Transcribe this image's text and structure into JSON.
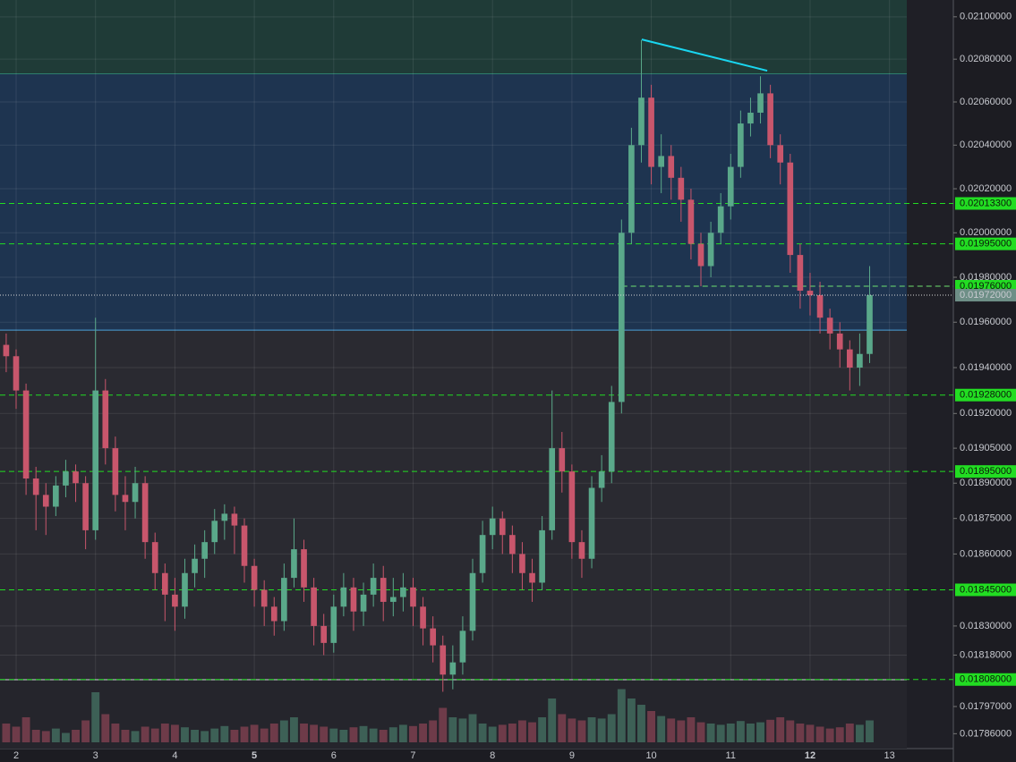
{
  "chart_data": {
    "type": "candlestick",
    "log_scale": true,
    "grid": true,
    "ylim": [
      0.0178,
      0.02108
    ],
    "xlim": [
      1.797,
      13.218
    ],
    "xticks": [
      2,
      3,
      4,
      5,
      6,
      7,
      8,
      9,
      10,
      11,
      12,
      13
    ],
    "xticks_bold": [
      5,
      12
    ],
    "yticks": [
      {
        "value": 0.021,
        "label": "0.02100000"
      },
      {
        "value": 0.0208,
        "label": "0.02080000"
      },
      {
        "value": 0.0206,
        "label": "0.02060000"
      },
      {
        "value": 0.0204,
        "label": "0.02040000"
      },
      {
        "value": 0.0202,
        "label": "0.02020000"
      },
      {
        "value": 0.02,
        "label": "0.02000000"
      },
      {
        "value": 0.0198,
        "label": "0.01980000"
      },
      {
        "value": 0.0196,
        "label": "0.01960000"
      },
      {
        "value": 0.0194,
        "label": "0.01940000"
      },
      {
        "value": 0.0192,
        "label": "0.01920000"
      },
      {
        "value": 0.01905,
        "label": "0.01905000"
      },
      {
        "value": 0.0189,
        "label": "0.01890000"
      },
      {
        "value": 0.01875,
        "label": "0.01875000"
      },
      {
        "value": 0.0186,
        "label": "0.01860000"
      },
      {
        "value": 0.0183,
        "label": "0.01830000"
      },
      {
        "value": 0.01818,
        "label": "0.01818000"
      },
      {
        "value": 0.01797,
        "label": "0.01797000"
      },
      {
        "value": 0.01786,
        "label": "0.01786000"
      }
    ],
    "up_color": "#5aa88a",
    "down_color": "#c8566c",
    "zones": [
      {
        "low": 0.02073,
        "color": "#1f3b37"
      },
      {
        "low": 0.019565,
        "high": 0.02073,
        "color": "#1e3450"
      }
    ],
    "trendline": {
      "x": [
        9.88,
        11.46
      ],
      "y": [
        0.020893,
        0.020746
      ],
      "color": "#19d6f0"
    },
    "levels": [
      {
        "value": 0.020133,
        "label": "0.02013300"
      },
      {
        "value": 0.01995,
        "label": "0.01995000"
      },
      {
        "value": 0.01976,
        "label": "0.01976000",
        "x_start": 9.63
      },
      {
        "value": 0.01928,
        "label": "0.01928000"
      },
      {
        "value": 0.01895,
        "label": "0.01895000"
      },
      {
        "value": 0.01845,
        "label": "0.01845000"
      },
      {
        "value": 0.01808,
        "label": "0.01808000"
      }
    ],
    "level_color": "#22dd22",
    "last_price": {
      "value": 0.01972,
      "label": "0.01972000",
      "color": "#6e8f87"
    },
    "volume_max": 100,
    "x": [
      1.875,
      2,
      2.125,
      2.25,
      2.375,
      2.5,
      2.625,
      2.75,
      2.875,
      3,
      3.125,
      3.25,
      3.375,
      3.5,
      3.625,
      3.75,
      3.875,
      4,
      4.125,
      4.25,
      4.375,
      4.5,
      4.625,
      4.75,
      4.875,
      5,
      5.125,
      5.25,
      5.375,
      5.5,
      5.625,
      5.75,
      5.875,
      6,
      6.125,
      6.25,
      6.375,
      6.5,
      6.625,
      6.75,
      6.875,
      7,
      7.125,
      7.25,
      7.375,
      7.5,
      7.625,
      7.75,
      7.875,
      8,
      8.125,
      8.25,
      8.375,
      8.5,
      8.625,
      8.75,
      8.875,
      9,
      9.125,
      9.25,
      9.375,
      9.5,
      9.625,
      9.75,
      9.875,
      10,
      10.125,
      10.25,
      10.375,
      10.5,
      10.625,
      10.75,
      10.875,
      11,
      11.125,
      11.25,
      11.375,
      11.5,
      11.625,
      11.75,
      11.875,
      12,
      12.125,
      12.25,
      12.375,
      12.5,
      12.625,
      12.75
    ],
    "open": [
      0.0195,
      0.01945,
      0.0193,
      0.01892,
      0.01885,
      0.0188,
      0.01889,
      0.01895,
      0.0189,
      0.0187,
      0.0193,
      0.01905,
      0.01885,
      0.01882,
      0.0189,
      0.01865,
      0.01852,
      0.01843,
      0.01838,
      0.01852,
      0.01858,
      0.01865,
      0.01874,
      0.01877,
      0.01872,
      0.01855,
      0.01845,
      0.01838,
      0.01832,
      0.0185,
      0.01862,
      0.01846,
      0.0183,
      0.01823,
      0.01838,
      0.01846,
      0.01836,
      0.01843,
      0.0185,
      0.0184,
      0.01842,
      0.01846,
      0.01838,
      0.01829,
      0.01822,
      0.0181,
      0.01815,
      0.01828,
      0.01852,
      0.01868,
      0.01875,
      0.01868,
      0.0186,
      0.01852,
      0.01848,
      0.0187,
      0.01905,
      0.01895,
      0.01865,
      0.01858,
      0.01888,
      0.01895,
      0.01925,
      0.02,
      0.0204,
      0.02062,
      0.0203,
      0.02035,
      0.02025,
      0.02015,
      0.01995,
      0.01985,
      0.02,
      0.02012,
      0.0203,
      0.0205,
      0.02055,
      0.02064,
      0.0204,
      0.02032,
      0.0199,
      0.01974,
      0.01972,
      0.01962,
      0.01955,
      0.01948,
      0.0194,
      0.01946
    ],
    "close": [
      0.01945,
      0.0193,
      0.01892,
      0.01885,
      0.0188,
      0.01889,
      0.01895,
      0.0189,
      0.0187,
      0.0193,
      0.01905,
      0.01885,
      0.01882,
      0.0189,
      0.01865,
      0.01852,
      0.01843,
      0.01838,
      0.01852,
      0.01858,
      0.01865,
      0.01874,
      0.01877,
      0.01872,
      0.01855,
      0.01845,
      0.01838,
      0.01832,
      0.0185,
      0.01862,
      0.01846,
      0.0183,
      0.01823,
      0.01838,
      0.01846,
      0.01836,
      0.01843,
      0.0185,
      0.0184,
      0.01842,
      0.01846,
      0.01838,
      0.01829,
      0.01822,
      0.0181,
      0.01815,
      0.01828,
      0.01852,
      0.01868,
      0.01875,
      0.01868,
      0.0186,
      0.01852,
      0.01848,
      0.0187,
      0.01905,
      0.01895,
      0.01865,
      0.01858,
      0.01888,
      0.01895,
      0.01925,
      0.02,
      0.0204,
      0.02062,
      0.0203,
      0.02035,
      0.02025,
      0.02015,
      0.01995,
      0.01985,
      0.02,
      0.02012,
      0.0203,
      0.0205,
      0.02055,
      0.02064,
      0.0204,
      0.02032,
      0.0199,
      0.01974,
      0.01972,
      0.01962,
      0.01955,
      0.01948,
      0.0194,
      0.01946,
      0.01972
    ],
    "high": [
      0.01955,
      0.01948,
      0.01933,
      0.01897,
      0.0189,
      0.01893,
      0.019,
      0.01898,
      0.01893,
      0.01962,
      0.01935,
      0.0191,
      0.01893,
      0.01897,
      0.01893,
      0.01869,
      0.01856,
      0.0185,
      0.01858,
      0.01864,
      0.0187,
      0.01879,
      0.01881,
      0.0188,
      0.01875,
      0.01858,
      0.01849,
      0.01842,
      0.01856,
      0.01875,
      0.01866,
      0.0185,
      0.01835,
      0.01843,
      0.01852,
      0.0185,
      0.01848,
      0.01856,
      0.01855,
      0.0185,
      0.01852,
      0.0185,
      0.01842,
      0.01834,
      0.01826,
      0.01822,
      0.01834,
      0.01858,
      0.01874,
      0.0188,
      0.01878,
      0.01872,
      0.01865,
      0.01858,
      0.01876,
      0.0193,
      0.01912,
      0.01898,
      0.0187,
      0.01893,
      0.01902,
      0.01932,
      0.02006,
      0.02048,
      0.02089,
      0.02068,
      0.02045,
      0.0204,
      0.0203,
      0.0202,
      0.02,
      0.02005,
      0.02018,
      0.02036,
      0.02056,
      0.02062,
      0.02072,
      0.02068,
      0.02045,
      0.02036,
      0.01995,
      0.01982,
      0.01978,
      0.01966,
      0.0196,
      0.01952,
      0.01955,
      0.01985
    ],
    "low": [
      0.01938,
      0.01922,
      0.01885,
      0.0187,
      0.01868,
      0.01876,
      0.01884,
      0.01882,
      0.01862,
      0.01866,
      0.01898,
      0.01878,
      0.0187,
      0.01875,
      0.01858,
      0.01845,
      0.01832,
      0.01828,
      0.01833,
      0.01846,
      0.0185,
      0.0186,
      0.01866,
      0.0186,
      0.01848,
      0.01838,
      0.0183,
      0.01826,
      0.01828,
      0.01846,
      0.0184,
      0.01822,
      0.01818,
      0.01819,
      0.01834,
      0.01828,
      0.0183,
      0.01838,
      0.01832,
      0.01834,
      0.01836,
      0.0183,
      0.01822,
      0.01815,
      0.01803,
      0.01804,
      0.0181,
      0.01824,
      0.01848,
      0.01862,
      0.0186,
      0.01852,
      0.01845,
      0.0184,
      0.01845,
      0.01866,
      0.01886,
      0.01858,
      0.0185,
      0.01854,
      0.01882,
      0.0189,
      0.0192,
      0.01995,
      0.02032,
      0.02022,
      0.02018,
      0.02015,
      0.02005,
      0.01988,
      0.01976,
      0.0198,
      0.01995,
      0.02006,
      0.02025,
      0.02044,
      0.0205,
      0.02034,
      0.02022,
      0.01982,
      0.01966,
      0.01963,
      0.01955,
      0.01948,
      0.0194,
      0.0193,
      0.01932,
      0.01942
    ],
    "volume": [
      30,
      25,
      40,
      20,
      18,
      22,
      15,
      20,
      35,
      80,
      45,
      30,
      20,
      18,
      25,
      22,
      30,
      28,
      24,
      20,
      18,
      22,
      26,
      20,
      25,
      28,
      22,
      30,
      35,
      40,
      30,
      28,
      25,
      22,
      20,
      24,
      26,
      22,
      20,
      24,
      28,
      26,
      30,
      35,
      55,
      40,
      38,
      45,
      30,
      25,
      28,
      30,
      35,
      32,
      40,
      70,
      45,
      38,
      35,
      40,
      38,
      45,
      85,
      70,
      60,
      50,
      42,
      38,
      35,
      40,
      32,
      30,
      28,
      30,
      34,
      30,
      32,
      36,
      40,
      35,
      30,
      28,
      25,
      22,
      24,
      30,
      28,
      35
    ]
  }
}
